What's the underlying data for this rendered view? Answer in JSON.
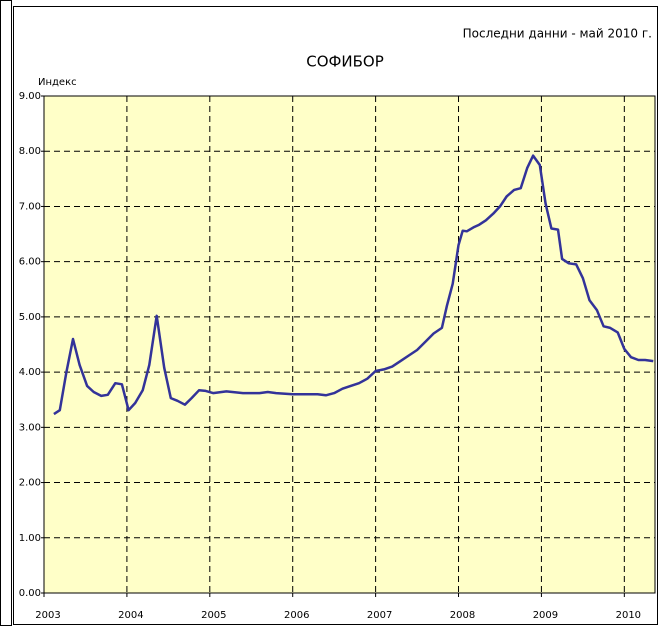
{
  "chart_data": {
    "type": "line",
    "title": "СОФИБОР",
    "subtitle": "Последни данни - май 2010 г.",
    "y_label": "Индекс",
    "x": [
      2003.12,
      2003.19,
      2003.27,
      2003.35,
      2003.43,
      2003.52,
      2003.6,
      2003.69,
      2003.77,
      2003.86,
      2003.94,
      2004.02,
      2004.1,
      2004.19,
      2004.27,
      2004.36,
      2004.45,
      2004.53,
      2004.61,
      2004.7,
      2004.78,
      2004.87,
      2004.95,
      2005.04,
      2005.2,
      2005.4,
      2005.6,
      2005.7,
      2005.8,
      2006.0,
      2006.2,
      2006.3,
      2006.4,
      2006.5,
      2006.6,
      2006.7,
      2006.8,
      2006.9,
      2007.0,
      2007.1,
      2007.2,
      2007.3,
      2007.4,
      2007.5,
      2007.6,
      2007.7,
      2007.8,
      2007.86,
      2007.93,
      2008.0,
      2008.05,
      2008.1,
      2008.18,
      2008.25,
      2008.33,
      2008.42,
      2008.5,
      2008.58,
      2008.67,
      2008.75,
      2008.83,
      2008.9,
      2008.98,
      2009.05,
      2009.12,
      2009.2,
      2009.25,
      2009.33,
      2009.42,
      2009.5,
      2009.58,
      2009.67,
      2009.75,
      2009.83,
      2009.92,
      2010.0,
      2010.08,
      2010.17,
      2010.25,
      2010.35
    ],
    "series": [
      {
        "name": "СОФИБОР",
        "color": "#333399",
        "values": [
          3.24,
          3.31,
          4.0,
          4.6,
          4.13,
          3.75,
          3.64,
          3.57,
          3.59,
          3.8,
          3.78,
          3.31,
          3.44,
          3.67,
          4.13,
          5.02,
          4.08,
          3.53,
          3.48,
          3.41,
          3.53,
          3.67,
          3.66,
          3.62,
          3.65,
          3.62,
          3.62,
          3.64,
          3.62,
          3.6,
          3.6,
          3.6,
          3.58,
          3.62,
          3.7,
          3.75,
          3.8,
          3.88,
          4.02,
          4.05,
          4.1,
          4.2,
          4.3,
          4.4,
          4.55,
          4.7,
          4.8,
          5.2,
          5.6,
          6.3,
          6.56,
          6.55,
          6.62,
          6.67,
          6.75,
          6.87,
          7.0,
          7.18,
          7.3,
          7.33,
          7.7,
          7.92,
          7.75,
          7.05,
          6.6,
          6.58,
          6.05,
          5.97,
          5.95,
          5.7,
          5.3,
          5.12,
          4.83,
          4.8,
          4.72,
          4.42,
          4.27,
          4.22,
          4.22,
          4.2
        ]
      }
    ],
    "xlim": [
      2003,
      2010.37
    ],
    "xticks": [
      2003,
      2004,
      2005,
      2006,
      2007,
      2008,
      2009,
      2010
    ],
    "ylim": [
      0,
      9
    ],
    "yticks": [
      {
        "value": 0,
        "label": "0.00"
      },
      {
        "value": 1,
        "label": "1.00"
      },
      {
        "value": 2,
        "label": "2.00"
      },
      {
        "value": 3,
        "label": "3.00"
      },
      {
        "value": 4,
        "label": "4.00"
      },
      {
        "value": 5,
        "label": "5.00"
      },
      {
        "value": 6,
        "label": "6.00"
      },
      {
        "value": 7,
        "label": "7.00"
      },
      {
        "value": 8,
        "label": "8.00"
      },
      {
        "value": 9,
        "label": "9.00"
      }
    ],
    "grid": true
  }
}
